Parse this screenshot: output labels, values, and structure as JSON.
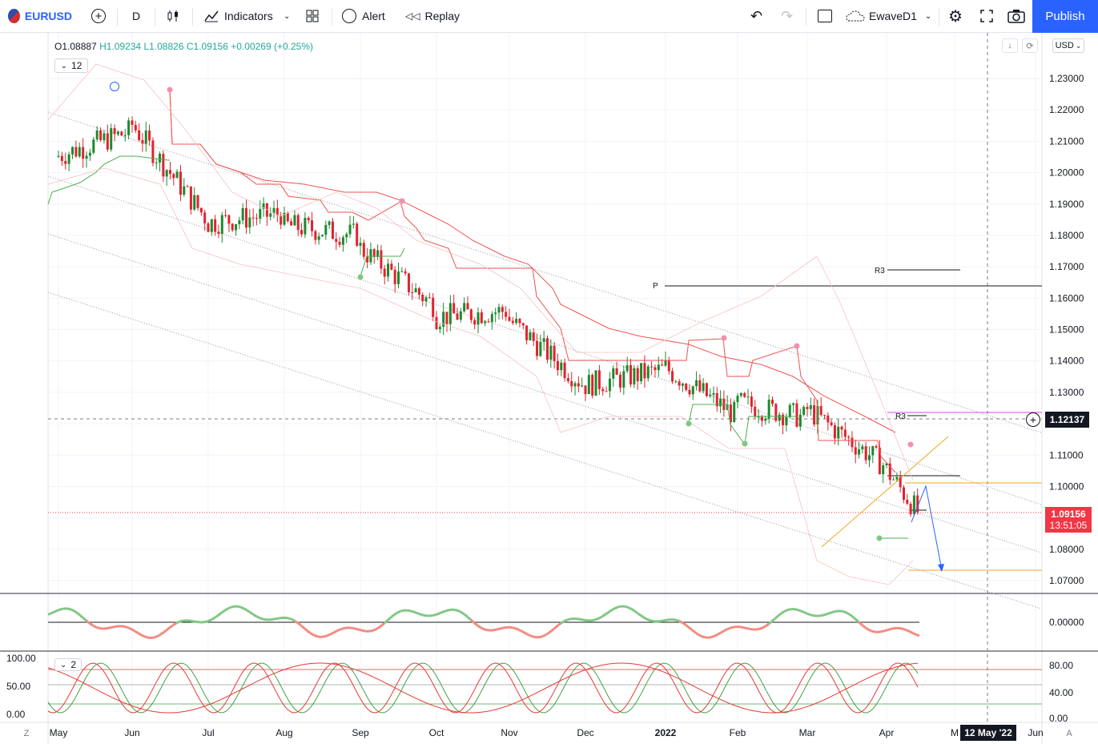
{
  "toolbar": {
    "symbol": "EURUSD",
    "interval": "D",
    "indicators": "Indicators",
    "alert": "Alert",
    "replay": "Replay",
    "layout_name": "EwaveD1",
    "publish": "Publish"
  },
  "legend": {
    "open": "O1.08887",
    "high": "H1.09234",
    "low": "L1.08826",
    "close": "C1.09156",
    "change": "+0.00269 (+0.25%)"
  },
  "hidden_count": "12",
  "hidden_count2": "2",
  "currency": "USD",
  "price_labels": [
    "1.23000",
    "1.22000",
    "1.21000",
    "1.20000",
    "1.19000",
    "1.18000",
    "1.17000",
    "1.16000",
    "1.15000",
    "1.14000",
    "1.13000",
    "1.12000",
    "1.11000",
    "1.10000",
    "1.09000",
    "1.08000",
    "1.07000"
  ],
  "osc_label": "0.00000",
  "stoch_right_labels": [
    "80.00",
    "40.00",
    "0.00"
  ],
  "stoch_left_labels": [
    "100.00",
    "50.00",
    "0.00"
  ],
  "crosshair_price": "1.12137",
  "last_price": "1.09156",
  "countdown": "13:51:05",
  "pivot_labels": {
    "p": "P",
    "r3a": "R3",
    "r3b": "R3"
  },
  "time_labels": [
    "May",
    "Jun",
    "Jul",
    "Aug",
    "Sep",
    "Oct",
    "Nov",
    "Dec",
    "2022",
    "Feb",
    "Mar",
    "Apr",
    "M",
    "Jun"
  ],
  "crosshair_date": "12 May '22",
  "corner_left": "Z",
  "corner_right": "A",
  "colors": {
    "up": "#26a69a",
    "down": "#ef5350",
    "bull": "#1b8a2f",
    "bear": "#e0232e",
    "accent": "#2962ff"
  },
  "chart_data": {
    "type": "candlestick",
    "ylim": [
      1.065,
      1.235
    ],
    "candles_monthly_closes": [
      {
        "x": "May",
        "y": 1.213
      },
      {
        "x": "Jun",
        "y": 1.186
      },
      {
        "x": "Jul",
        "y": 1.187
      },
      {
        "x": "Aug",
        "y": 1.18
      },
      {
        "x": "Sep",
        "y": 1.158
      },
      {
        "x": "Oct",
        "y": 1.156
      },
      {
        "x": "Nov",
        "y": 1.133
      },
      {
        "x": "Dec",
        "y": 1.137
      },
      {
        "x": "2022",
        "y": 1.123
      },
      {
        "x": "Feb",
        "y": 1.122
      },
      {
        "x": "Mar",
        "y": 1.107
      },
      {
        "x": "Apr",
        "y": 1.092
      }
    ]
  }
}
